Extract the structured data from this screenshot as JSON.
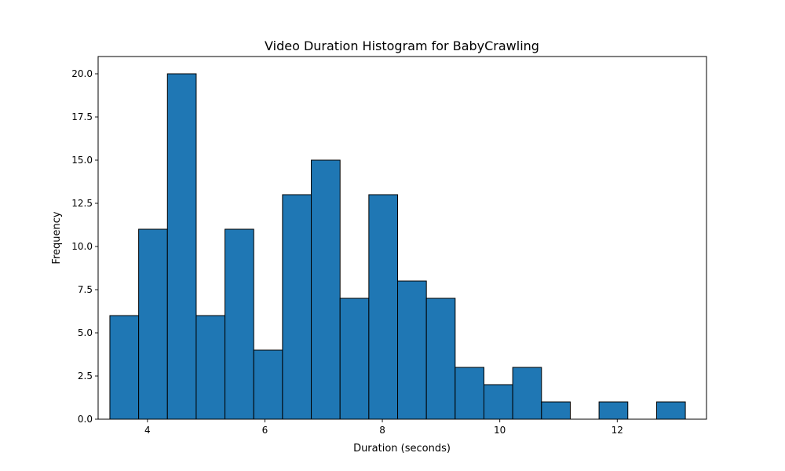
{
  "chart_data": {
    "type": "bar",
    "title": "Video Duration Histogram for BabyCrawling",
    "xlabel": "Duration (seconds)",
    "ylabel": "Frequency",
    "xlim": [
      3.16,
      13.52
    ],
    "ylim": [
      0,
      21
    ],
    "xticks": [
      4,
      6,
      8,
      10,
      12
    ],
    "xtick_labels": [
      "4",
      "6",
      "8",
      "10",
      "12"
    ],
    "yticks": [
      0,
      2.5,
      5,
      7.5,
      10,
      12.5,
      15,
      17.5,
      20
    ],
    "ytick_labels": [
      "0.0",
      "2.5",
      "5.0",
      "7.5",
      "10.0",
      "12.5",
      "15.0",
      "17.5",
      "20.0"
    ],
    "bin_edges": [
      3.36,
      3.85,
      4.34,
      4.83,
      5.32,
      5.81,
      6.3,
      6.79,
      7.28,
      7.77,
      8.26,
      8.75,
      9.24,
      9.73,
      10.22,
      10.71,
      11.2,
      11.69,
      12.18,
      12.67,
      13.16
    ],
    "values": [
      6,
      11,
      20,
      6,
      11,
      4,
      13,
      15,
      7,
      13,
      8,
      7,
      3,
      2,
      3,
      1,
      0,
      1,
      0,
      1
    ],
    "bar_color": "#1f77b4",
    "edge_color": "#000000",
    "grid": false,
    "legend": "none"
  }
}
